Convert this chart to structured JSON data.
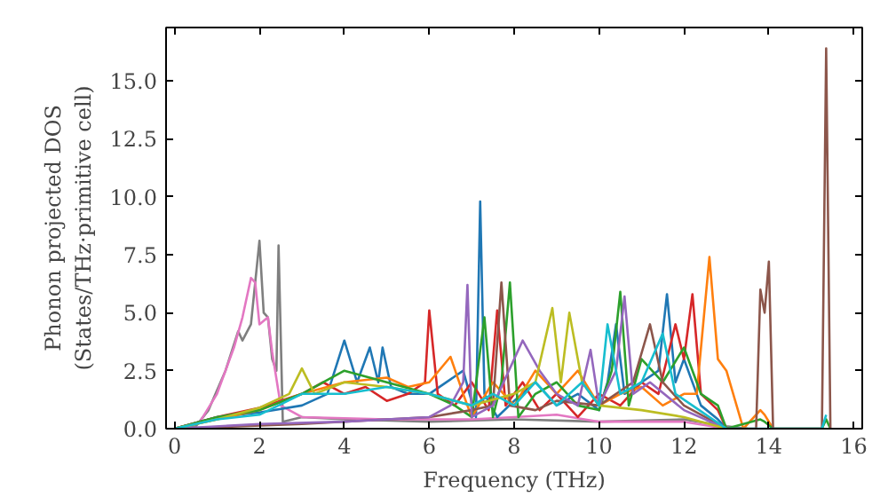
{
  "chart_data": {
    "type": "line",
    "xlabel": "Frequency (THz)",
    "ylabel": "Phonon projected DOS\n(States/THz·primitive cell)",
    "xlim": [
      -0.2,
      16.2
    ],
    "ylim": [
      0,
      17.3
    ],
    "xticks": [
      0,
      2,
      4,
      6,
      8,
      10,
      12,
      14,
      16
    ],
    "yticks": [
      {
        "value": 0,
        "label": "0.0"
      },
      {
        "value": 2.5,
        "label": "2.5"
      },
      {
        "value": 5,
        "label": "5.0"
      },
      {
        "value": 7.5,
        "label": "7.5"
      },
      {
        "value": 10,
        "label": "10.0"
      },
      {
        "value": 12.5,
        "label": "12.5"
      },
      {
        "value": 15,
        "label": "15.0"
      }
    ],
    "series": [
      {
        "color": "#7f7f7f",
        "x": [
          0,
          0.5,
          0.8,
          1.2,
          1.5,
          1.6,
          1.8,
          2.0,
          2.1,
          2.2,
          2.3,
          2.4,
          2.45,
          2.55,
          3,
          4,
          6,
          8,
          10,
          12,
          13,
          13.5
        ],
        "values": [
          0,
          0.1,
          0.8,
          2.5,
          4.2,
          3.8,
          4.5,
          8.1,
          5.0,
          4.8,
          3.0,
          2.5,
          7.9,
          0.3,
          0.5,
          0.4,
          0.3,
          0.4,
          0.3,
          0.4,
          0.1,
          0
        ]
      },
      {
        "color": "#e377c2",
        "x": [
          0,
          0.6,
          1.0,
          1.4,
          1.6,
          1.8,
          1.9,
          2.0,
          2.2,
          2.3,
          2.5,
          3,
          5,
          7,
          8,
          9,
          10,
          12,
          13
        ],
        "values": [
          0,
          0.3,
          1.5,
          3.5,
          4.8,
          6.5,
          6.3,
          4.5,
          4.8,
          3.3,
          1.0,
          0.5,
          0.4,
          0.4,
          0.5,
          0.6,
          0.3,
          0.3,
          0
        ]
      },
      {
        "color": "#1f77b4",
        "x": [
          0,
          1,
          2,
          3,
          3.6,
          4.0,
          4.3,
          4.6,
          4.8,
          4.9,
          5.1,
          5.5,
          6,
          6.8,
          7.1,
          7.2,
          7.3,
          7.6,
          8,
          8.5,
          9,
          9.5,
          10,
          10.2,
          10.4,
          10.6,
          11,
          11.4,
          11.6,
          11.8,
          12,
          12.4,
          12.8,
          13
        ],
        "values": [
          0,
          0.5,
          0.7,
          1.0,
          1.5,
          3.8,
          2.0,
          3.5,
          2.0,
          3.5,
          1.8,
          1.5,
          1.5,
          2.5,
          0.5,
          9.8,
          1.5,
          0.5,
          1.2,
          2.0,
          1.0,
          1.5,
          0.8,
          2.0,
          4.5,
          1.5,
          2.0,
          2.5,
          5.8,
          2.0,
          3.0,
          1.0,
          0.4,
          0
        ]
      },
      {
        "color": "#d62728",
        "x": [
          0,
          1,
          2,
          3,
          3.5,
          4,
          4.5,
          5,
          5.5,
          5.9,
          6.0,
          6.2,
          6.6,
          7,
          7.4,
          7.6,
          7.8,
          8.2,
          8.6,
          9,
          9.5,
          10,
          10.5,
          11,
          11.4,
          11.8,
          12.0,
          12.2,
          12.4,
          12.8,
          13
        ],
        "values": [
          0,
          0.5,
          0.9,
          1.5,
          2.0,
          1.5,
          1.8,
          1.2,
          1.5,
          2.0,
          5.1,
          1.5,
          1.0,
          2.0,
          0.8,
          5.1,
          1.0,
          2.0,
          0.8,
          1.5,
          0.5,
          1.5,
          1.0,
          2.0,
          1.5,
          4.5,
          3.0,
          5.8,
          1.5,
          0.8,
          0
        ]
      },
      {
        "color": "#ff7f0e",
        "x": [
          0,
          1,
          2,
          3,
          4,
          5,
          5.5,
          6,
          6.5,
          6.8,
          7,
          7.5,
          8,
          8.5,
          9,
          9.5,
          10,
          10.5,
          11,
          11.5,
          12,
          12.3,
          12.6,
          12.8,
          13.0,
          13.4,
          13.8,
          13.9,
          14.1
        ],
        "values": [
          0,
          0.4,
          0.8,
          1.5,
          2.0,
          2.2,
          1.8,
          2.0,
          3.1,
          1.5,
          0.5,
          2.0,
          1.0,
          2.5,
          1.5,
          2.5,
          1.0,
          1.5,
          1.8,
          1.0,
          1.5,
          1.5,
          7.4,
          3.0,
          2.5,
          0,
          0.8,
          0.6,
          0
        ]
      },
      {
        "color": "#2ca02c",
        "x": [
          0,
          1,
          2,
          3,
          4,
          5,
          6,
          6.6,
          7,
          7.3,
          7.5,
          7.7,
          7.9,
          8.1,
          8.5,
          9,
          9.5,
          10,
          10.3,
          10.5,
          10.7,
          11,
          11.5,
          12,
          12.4,
          12.8,
          13,
          13.8,
          13.9,
          14.1,
          15.25,
          15.35,
          15.45
        ],
        "values": [
          0,
          0.5,
          0.8,
          1.5,
          2.5,
          2.0,
          1.5,
          1.0,
          0.5,
          4.8,
          0.5,
          2.0,
          6.3,
          0.5,
          1.5,
          2.0,
          1.0,
          0.8,
          2.5,
          5.9,
          1.0,
          3.0,
          2.0,
          3.5,
          1.5,
          1.0,
          0,
          0.4,
          0.3,
          0,
          0,
          0.4,
          0
        ]
      },
      {
        "color": "#8c564b",
        "x": [
          0,
          3,
          6,
          7,
          7.5,
          7.7,
          7.9,
          8.5,
          9,
          10,
          10.8,
          11.2,
          11.5,
          12,
          12.5,
          13,
          13.7,
          13.8,
          13.9,
          14.0,
          14.1,
          15.25,
          15.35,
          15.45
        ],
        "values": [
          0,
          0.2,
          0.5,
          0.8,
          1.0,
          6.3,
          1.0,
          0.8,
          1.2,
          1.0,
          2.0,
          4.5,
          2.0,
          1.0,
          0.5,
          0,
          0,
          6.0,
          5.0,
          7.2,
          0,
          0,
          16.4,
          0
        ]
      },
      {
        "color": "#9467bd",
        "x": [
          0,
          2,
          4,
          6,
          6.5,
          6.8,
          6.9,
          7.0,
          7.5,
          8.2,
          8.6,
          9,
          9.5,
          9.8,
          10.0,
          10.4,
          10.6,
          10.8,
          11.2,
          12,
          13
        ],
        "values": [
          0,
          0.2,
          0.3,
          0.5,
          1.0,
          2.0,
          6.2,
          0.5,
          1.0,
          3.8,
          2.5,
          1.5,
          1.0,
          3.4,
          1.0,
          2.5,
          5.7,
          1.5,
          2.0,
          0.8,
          0
        ]
      },
      {
        "color": "#bcbd22",
        "x": [
          0,
          1,
          2,
          2.7,
          3.0,
          3.3,
          4,
          5,
          6,
          7,
          8,
          8.5,
          8.9,
          9.1,
          9.3,
          9.6,
          10,
          11,
          12,
          13
        ],
        "values": [
          0,
          0.4,
          0.9,
          1.5,
          2.6,
          1.5,
          2.0,
          1.8,
          1.5,
          1.0,
          1.5,
          2.0,
          5.2,
          2.0,
          5.0,
          2.0,
          1.0,
          0.8,
          0.5,
          0
        ]
      },
      {
        "color": "#17becf",
        "x": [
          0,
          1,
          2,
          3,
          4,
          5,
          6,
          7,
          7.5,
          8,
          8.5,
          9,
          9.6,
          10,
          10.2,
          10.5,
          11,
          11.5,
          11.8,
          12.2,
          13,
          15.25,
          15.35
        ],
        "values": [
          0,
          0.4,
          0.6,
          1.5,
          1.5,
          1.8,
          1.5,
          1.0,
          1.5,
          1.0,
          2.0,
          1.0,
          2.0,
          1.0,
          4.5,
          1.5,
          2.0,
          4.1,
          1.5,
          1.0,
          0,
          0,
          0.6
        ]
      }
    ]
  }
}
